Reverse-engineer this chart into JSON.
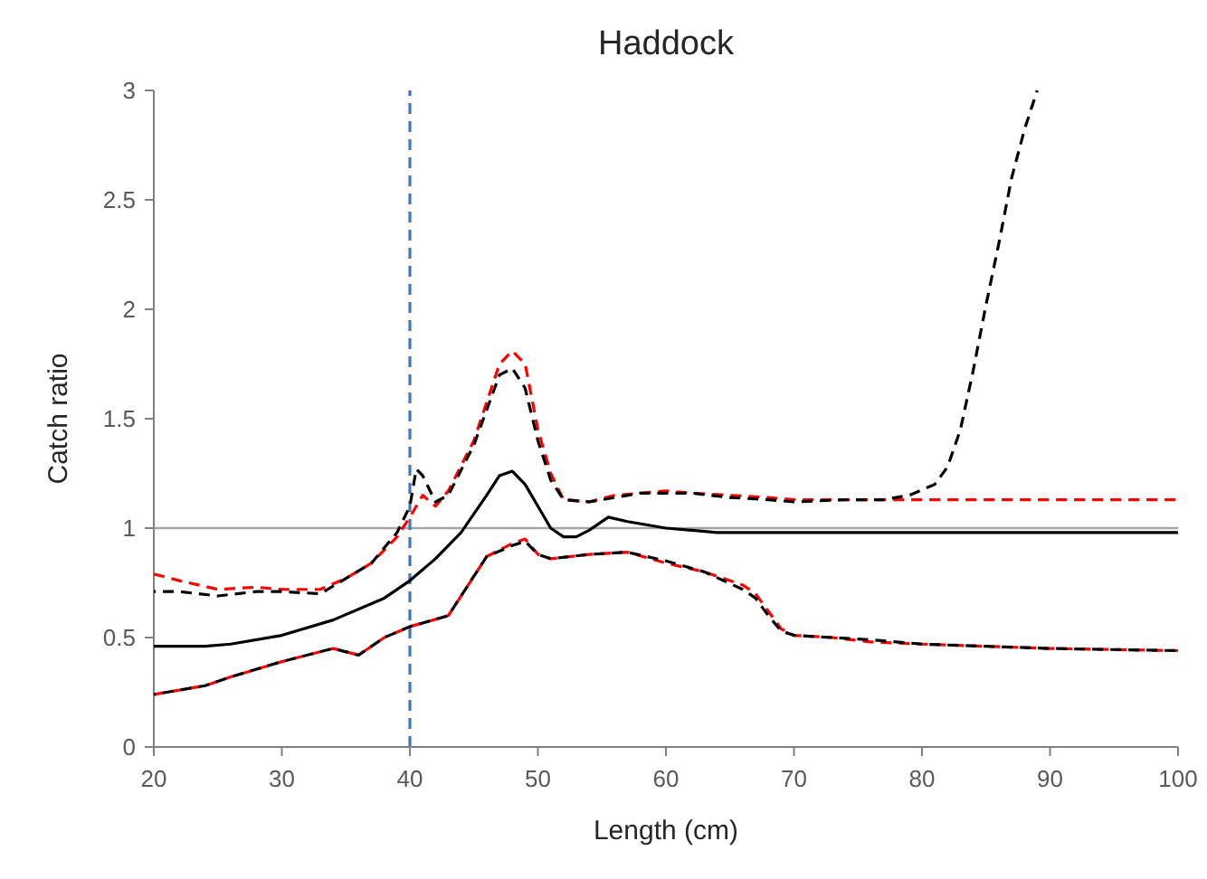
{
  "chart_data": {
    "type": "line",
    "title": "Haddock",
    "xlabel": "Length (cm)",
    "ylabel": "Catch ratio",
    "xlim": [
      20,
      100
    ],
    "xticks": [
      20,
      30,
      40,
      50,
      60,
      70,
      80,
      90,
      100
    ],
    "ylim": [
      0,
      3
    ],
    "yticks": [
      0,
      0.5,
      1,
      1.5,
      2,
      2.5,
      3
    ],
    "grid": false,
    "ref_lines": [
      {
        "axis": "y",
        "value": 1,
        "color": "#a6a6a6",
        "line_style": "solid"
      },
      {
        "axis": "x",
        "value": 40,
        "color": "#4472c4",
        "line_style": "dashed"
      }
    ],
    "series": [
      {
        "color": "#000000",
        "line_style": "solid",
        "x": [
          20,
          24,
          26,
          30,
          34,
          38,
          40,
          42,
          44,
          46,
          47,
          48,
          49,
          50,
          51,
          52,
          53,
          54,
          55.5,
          57,
          60,
          64,
          100
        ],
        "values": [
          0.46,
          0.46,
          0.47,
          0.51,
          0.58,
          0.68,
          0.76,
          0.86,
          0.98,
          1.15,
          1.24,
          1.26,
          1.2,
          1.1,
          1.0,
          0.96,
          0.96,
          0.99,
          1.05,
          1.03,
          1.0,
          0.98,
          0.98
        ]
      },
      {
        "color": "#ff0000",
        "line_style": "dashed",
        "x": [
          20,
          22,
          25,
          28,
          30,
          33,
          35,
          37,
          39,
          40,
          41,
          42,
          43,
          45,
          47,
          48,
          49,
          50,
          51,
          52,
          54,
          56,
          58,
          60,
          62,
          65,
          68,
          70,
          75,
          80,
          100
        ],
        "values": [
          0.79,
          0.76,
          0.72,
          0.73,
          0.72,
          0.72,
          0.77,
          0.84,
          0.96,
          1.05,
          1.15,
          1.1,
          1.17,
          1.4,
          1.75,
          1.81,
          1.75,
          1.45,
          1.25,
          1.13,
          1.12,
          1.15,
          1.16,
          1.17,
          1.16,
          1.15,
          1.14,
          1.13,
          1.13,
          1.13,
          1.13
        ]
      },
      {
        "color": "#000000",
        "line_style": "dashed",
        "x": [
          20,
          22,
          25,
          28,
          30,
          33,
          35,
          37,
          39,
          40,
          40.5,
          41,
          42,
          43,
          45,
          47,
          48,
          49,
          50,
          51,
          52,
          54,
          56,
          58,
          60,
          62,
          65,
          68,
          70,
          74,
          77,
          79,
          81,
          82,
          83,
          84,
          85,
          86,
          87,
          88,
          89
        ],
        "values": [
          0.71,
          0.71,
          0.69,
          0.71,
          0.71,
          0.7,
          0.77,
          0.84,
          0.98,
          1.1,
          1.27,
          1.24,
          1.12,
          1.15,
          1.38,
          1.7,
          1.73,
          1.64,
          1.4,
          1.22,
          1.13,
          1.12,
          1.14,
          1.16,
          1.16,
          1.16,
          1.14,
          1.13,
          1.12,
          1.13,
          1.13,
          1.15,
          1.2,
          1.28,
          1.45,
          1.72,
          2.02,
          2.3,
          2.6,
          2.82,
          3.0
        ]
      },
      {
        "color": "#ff0000",
        "line_style": "dashed",
        "x": [
          20,
          24,
          26,
          30,
          34,
          36,
          38,
          40,
          43,
          45,
          46,
          48,
          49,
          50,
          51,
          54,
          57,
          60,
          63,
          66,
          67,
          68,
          69,
          70,
          73,
          76,
          80,
          85,
          90,
          100
        ],
        "values": [
          0.24,
          0.28,
          0.32,
          0.39,
          0.45,
          0.42,
          0.5,
          0.55,
          0.6,
          0.78,
          0.87,
          0.93,
          0.95,
          0.88,
          0.86,
          0.88,
          0.89,
          0.84,
          0.8,
          0.74,
          0.7,
          0.62,
          0.54,
          0.51,
          0.5,
          0.48,
          0.47,
          0.46,
          0.45,
          0.44
        ]
      },
      {
        "color": "#000000",
        "line_style": "dashed",
        "x": [
          20,
          24,
          26,
          30,
          34,
          36,
          38,
          40,
          43,
          45,
          46,
          48,
          49,
          50,
          51,
          54,
          57,
          60,
          63,
          66,
          67,
          68,
          69,
          70,
          73,
          76,
          80,
          85,
          90,
          100
        ],
        "values": [
          0.24,
          0.28,
          0.32,
          0.39,
          0.45,
          0.42,
          0.5,
          0.55,
          0.6,
          0.78,
          0.87,
          0.92,
          0.94,
          0.88,
          0.86,
          0.88,
          0.89,
          0.85,
          0.8,
          0.72,
          0.68,
          0.6,
          0.53,
          0.51,
          0.5,
          0.49,
          0.47,
          0.46,
          0.45,
          0.44
        ]
      }
    ]
  }
}
